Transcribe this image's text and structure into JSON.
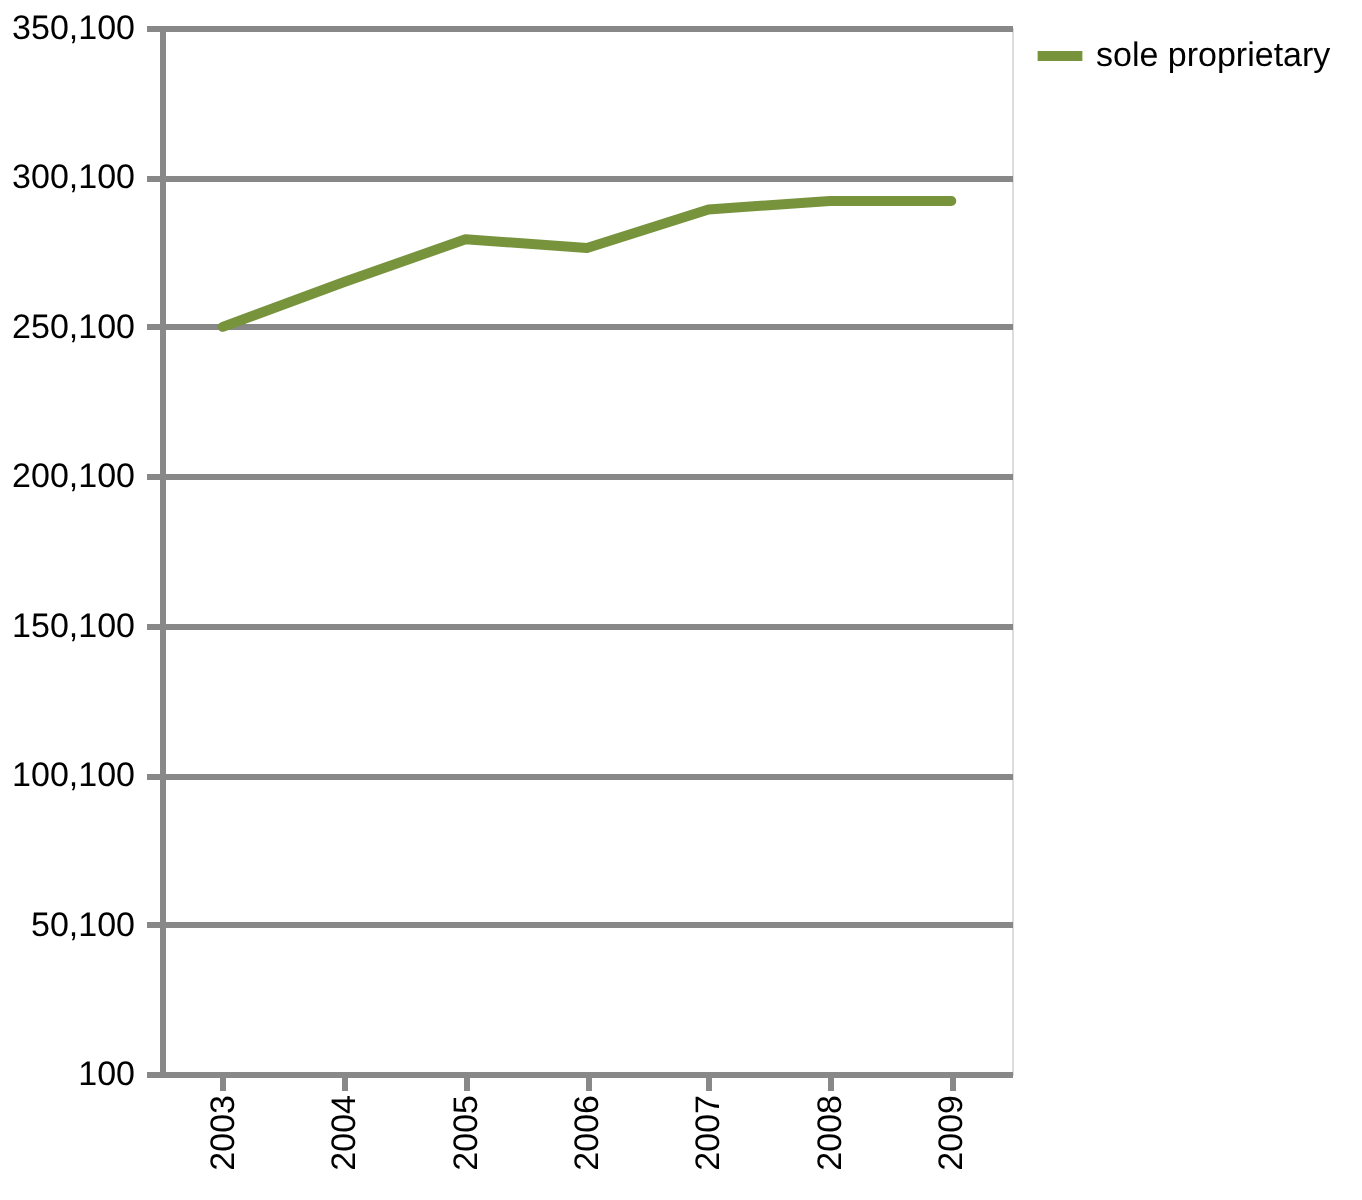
{
  "chart_data": {
    "type": "line",
    "categories": [
      "2003",
      "2004",
      "2005",
      "2006",
      "2007",
      "2008",
      "2009"
    ],
    "series": [
      {
        "name": "sole proprietary",
        "color": "#77933c",
        "values": [
          250100,
          265100,
          279400,
          276500,
          289400,
          292200,
          292200
        ]
      }
    ],
    "ylim": [
      100,
      350100
    ],
    "yticks": [
      {
        "value": 100,
        "label": "100"
      },
      {
        "value": 50100,
        "label": "50,100"
      },
      {
        "value": 100100,
        "label": "100,100"
      },
      {
        "value": 150100,
        "label": "150,100"
      },
      {
        "value": 200100,
        "label": "200,100"
      },
      {
        "value": 250100,
        "label": "250,100"
      },
      {
        "value": 300100,
        "label": "300,100"
      },
      {
        "value": 350100,
        "label": "350,100"
      }
    ],
    "grid": "y",
    "legend": "right",
    "line_style": "solid"
  }
}
